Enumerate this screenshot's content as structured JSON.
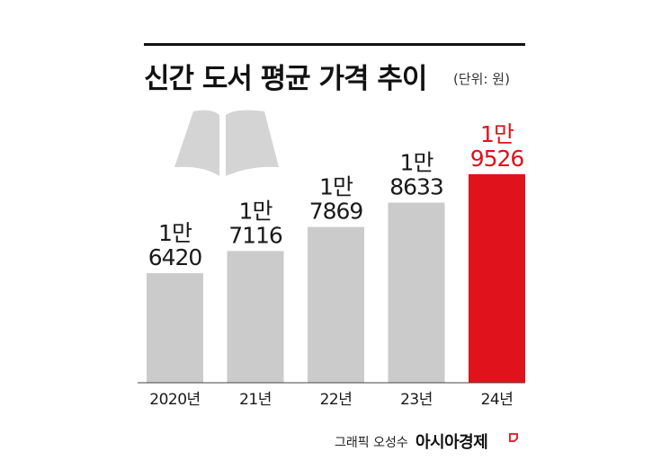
{
  "title": "신간 도서 평균 가격 추이",
  "unit_note": "(단위: 원)",
  "credit": "그래픽 오성수",
  "brand": "아시아경제",
  "colors": {
    "bar": "#cbcbcb",
    "highlight_bar": "#e0121c",
    "highlight_text": "#e0121c",
    "text": "#1a1a1a",
    "book": "#d4d4d4"
  },
  "decoration": {
    "icon": "open-book-icon"
  },
  "chart_data": {
    "type": "bar",
    "title": "신간 도서 평균 가격 추이",
    "xlabel": "",
    "ylabel": "",
    "unit": "원",
    "categories": [
      "2020년",
      "21년",
      "22년",
      "23년",
      "24년"
    ],
    "values": [
      16420,
      17116,
      17869,
      18633,
      19526
    ],
    "value_labels": [
      [
        "1만",
        "6420"
      ],
      [
        "1만",
        "7116"
      ],
      [
        "1만",
        "7869"
      ],
      [
        "1만",
        "8633"
      ],
      [
        "1만",
        "9526"
      ]
    ],
    "highlight_index": 4,
    "grid": false,
    "legend": "none"
  }
}
